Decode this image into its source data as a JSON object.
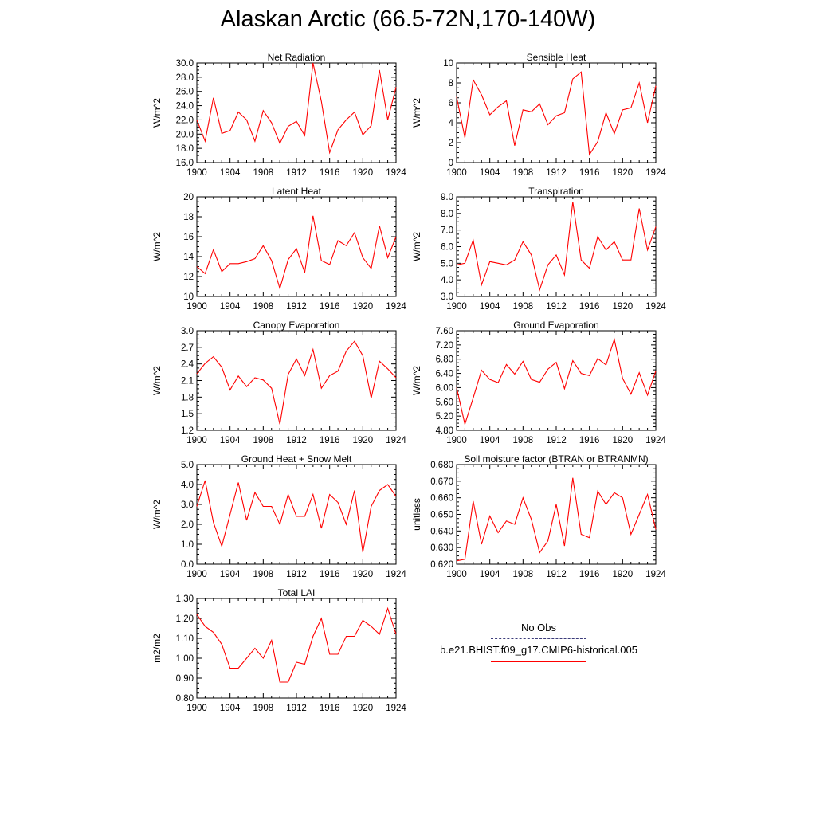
{
  "title": "Alaskan Arctic (66.5-72N,170-140W)",
  "legend": {
    "obs_label": "No Obs",
    "obs_color": "#3b3b7a",
    "model_label": "b.e21.BHIST.f09_g17.CMIP6-historical.005",
    "model_color": "#ff0000"
  },
  "chart_data": [
    {
      "type": "line",
      "title": "Net Radiation",
      "ylabel": "W/m^2",
      "xlim": [
        1900,
        1924
      ],
      "ylim": [
        16,
        30
      ],
      "yticks": [
        "16.0",
        "18.0",
        "20.0",
        "22.0",
        "24.0",
        "26.0",
        "28.0",
        "30.0"
      ],
      "xticks": [
        "1900",
        "1904",
        "1908",
        "1912",
        "1916",
        "1920",
        "1924"
      ],
      "x": [
        1900,
        1901,
        1902,
        1903,
        1904,
        1905,
        1906,
        1907,
        1908,
        1909,
        1910,
        1911,
        1912,
        1913,
        1914,
        1915,
        1916,
        1917,
        1918,
        1919,
        1920,
        1921,
        1922,
        1923,
        1924
      ],
      "series": [
        {
          "values": [
            22.0,
            19.0,
            25.1,
            20.1,
            20.5,
            23.1,
            22.0,
            19.0,
            23.3,
            21.6,
            18.7,
            21.1,
            21.8,
            19.8,
            30.0,
            24.6,
            17.4,
            20.6,
            22.0,
            23.1,
            19.9,
            21.2,
            29.0,
            22.0,
            26.6
          ]
        }
      ]
    },
    {
      "type": "line",
      "title": "Sensible Heat",
      "ylabel": "W/m^2",
      "xlim": [
        1900,
        1924
      ],
      "ylim": [
        0,
        10
      ],
      "yticks": [
        "0",
        "2",
        "4",
        "6",
        "8",
        "10"
      ],
      "xticks": [
        "1900",
        "1904",
        "1908",
        "1912",
        "1916",
        "1920",
        "1924"
      ],
      "x": [
        1900,
        1901,
        1902,
        1903,
        1904,
        1905,
        1906,
        1907,
        1908,
        1909,
        1910,
        1911,
        1912,
        1913,
        1914,
        1915,
        1916,
        1917,
        1918,
        1919,
        1920,
        1921,
        1922,
        1923,
        1924
      ],
      "series": [
        {
          "values": [
            6.6,
            2.5,
            8.3,
            6.8,
            4.8,
            5.6,
            6.2,
            1.7,
            5.3,
            5.1,
            5.9,
            3.8,
            4.7,
            5.0,
            8.4,
            9.1,
            0.8,
            2.1,
            5.0,
            2.9,
            5.3,
            5.5,
            8.0,
            4.0,
            7.7
          ]
        }
      ]
    },
    {
      "type": "line",
      "title": "Latent Heat",
      "ylabel": "W/m^2",
      "xlim": [
        1900,
        1924
      ],
      "ylim": [
        10,
        20
      ],
      "yticks": [
        "10",
        "12",
        "14",
        "16",
        "18",
        "20"
      ],
      "xticks": [
        "1900",
        "1904",
        "1908",
        "1912",
        "1916",
        "1920",
        "1924"
      ],
      "x": [
        1900,
        1901,
        1902,
        1903,
        1904,
        1905,
        1906,
        1907,
        1908,
        1909,
        1910,
        1911,
        1912,
        1913,
        1914,
        1915,
        1916,
        1917,
        1918,
        1919,
        1920,
        1921,
        1922,
        1923,
        1924
      ],
      "series": [
        {
          "values": [
            13.0,
            12.3,
            14.7,
            12.5,
            13.3,
            13.3,
            13.5,
            13.8,
            15.1,
            13.6,
            10.8,
            13.7,
            14.8,
            12.4,
            18.1,
            13.6,
            13.2,
            15.6,
            15.1,
            16.4,
            13.9,
            12.8,
            17.1,
            13.9,
            16.0
          ]
        }
      ]
    },
    {
      "type": "line",
      "title": "Transpiration",
      "ylabel": "W/m^2",
      "xlim": [
        1900,
        1924
      ],
      "ylim": [
        3,
        9
      ],
      "yticks": [
        "3.0",
        "4.0",
        "5.0",
        "6.0",
        "7.0",
        "8.0",
        "9.0"
      ],
      "xticks": [
        "1900",
        "1904",
        "1908",
        "1912",
        "1916",
        "1920",
        "1924"
      ],
      "x": [
        1900,
        1901,
        1902,
        1903,
        1904,
        1905,
        1906,
        1907,
        1908,
        1909,
        1910,
        1911,
        1912,
        1913,
        1914,
        1915,
        1916,
        1917,
        1918,
        1919,
        1920,
        1921,
        1922,
        1923,
        1924
      ],
      "series": [
        {
          "values": [
            4.9,
            5.0,
            6.4,
            3.7,
            5.1,
            5.0,
            4.9,
            5.2,
            6.3,
            5.5,
            3.4,
            4.9,
            5.5,
            4.3,
            8.7,
            5.2,
            4.7,
            6.6,
            5.8,
            6.3,
            5.2,
            5.2,
            8.3,
            5.8,
            7.2
          ]
        }
      ]
    },
    {
      "type": "line",
      "title": "Canopy Evaporation",
      "ylabel": "W/m^2",
      "xlim": [
        1900,
        1924
      ],
      "ylim": [
        1.2,
        3.0
      ],
      "yticks": [
        "1.2",
        "1.5",
        "1.8",
        "2.1",
        "2.4",
        "2.7",
        "3.0"
      ],
      "xticks": [
        "1900",
        "1904",
        "1908",
        "1912",
        "1916",
        "1920",
        "1924"
      ],
      "x": [
        1900,
        1901,
        1902,
        1903,
        1904,
        1905,
        1906,
        1907,
        1908,
        1909,
        1910,
        1911,
        1912,
        1913,
        1914,
        1915,
        1916,
        1917,
        1918,
        1919,
        1920,
        1921,
        1922,
        1923,
        1924
      ],
      "series": [
        {
          "values": [
            2.22,
            2.41,
            2.53,
            2.34,
            1.93,
            2.18,
            1.99,
            2.15,
            2.11,
            1.96,
            1.31,
            2.21,
            2.49,
            2.19,
            2.66,
            1.96,
            2.19,
            2.27,
            2.63,
            2.81,
            2.55,
            1.78,
            2.45,
            2.31,
            2.15
          ]
        }
      ]
    },
    {
      "type": "line",
      "title": "Ground Evaporation",
      "ylabel": "W/m^2",
      "xlim": [
        1900,
        1924
      ],
      "ylim": [
        4.8,
        7.6
      ],
      "yticks": [
        "4.80",
        "5.20",
        "5.60",
        "6.00",
        "6.40",
        "6.80",
        "7.20",
        "7.60"
      ],
      "xticks": [
        "1900",
        "1904",
        "1908",
        "1912",
        "1916",
        "1920",
        "1924"
      ],
      "x": [
        1900,
        1901,
        1902,
        1903,
        1904,
        1905,
        1906,
        1907,
        1908,
        1909,
        1910,
        1911,
        1912,
        1913,
        1914,
        1915,
        1916,
        1917,
        1918,
        1919,
        1920,
        1921,
        1922,
        1923,
        1924
      ],
      "series": [
        {
          "values": [
            6.0,
            4.97,
            5.71,
            6.49,
            6.23,
            6.14,
            6.65,
            6.38,
            6.74,
            6.23,
            6.15,
            6.52,
            6.71,
            5.97,
            6.76,
            6.4,
            6.34,
            6.82,
            6.64,
            7.36,
            6.26,
            5.82,
            6.42,
            5.79,
            6.47
          ]
        }
      ]
    },
    {
      "type": "line",
      "title": "Ground Heat + Snow Melt",
      "ylabel": "W/m^2",
      "xlim": [
        1900,
        1924
      ],
      "ylim": [
        0,
        5
      ],
      "yticks": [
        "0.0",
        "1.0",
        "2.0",
        "3.0",
        "4.0",
        "5.0"
      ],
      "xticks": [
        "1900",
        "1904",
        "1908",
        "1912",
        "1916",
        "1920",
        "1924"
      ],
      "x": [
        1900,
        1901,
        1902,
        1903,
        1904,
        1905,
        1906,
        1907,
        1908,
        1909,
        1910,
        1911,
        1912,
        1913,
        1914,
        1915,
        1916,
        1917,
        1918,
        1919,
        1920,
        1921,
        1922,
        1923,
        1924
      ],
      "series": [
        {
          "values": [
            2.9,
            4.2,
            2.1,
            0.9,
            2.5,
            4.1,
            2.2,
            3.6,
            2.9,
            2.9,
            2.0,
            3.5,
            2.4,
            2.4,
            3.5,
            1.8,
            3.5,
            3.1,
            2.0,
            3.7,
            0.6,
            2.9,
            3.7,
            4.0,
            3.4
          ]
        }
      ]
    },
    {
      "type": "line",
      "title": "Soil moisture factor (BTRAN or BTRANMN)",
      "ylabel": "unitless",
      "xlim": [
        1900,
        1924
      ],
      "ylim": [
        0.62,
        0.68
      ],
      "yticks": [
        "0.620",
        "0.630",
        "0.640",
        "0.650",
        "0.660",
        "0.670",
        "0.680"
      ],
      "xticks": [
        "1900",
        "1904",
        "1908",
        "1912",
        "1916",
        "1920",
        "1924"
      ],
      "x": [
        1900,
        1901,
        1902,
        1903,
        1904,
        1905,
        1906,
        1907,
        1908,
        1909,
        1910,
        1911,
        1912,
        1913,
        1914,
        1915,
        1916,
        1917,
        1918,
        1919,
        1920,
        1921,
        1922,
        1923,
        1924
      ],
      "series": [
        {
          "values": [
            0.622,
            0.623,
            0.658,
            0.632,
            0.649,
            0.639,
            0.646,
            0.644,
            0.66,
            0.647,
            0.627,
            0.634,
            0.656,
            0.631,
            0.672,
            0.638,
            0.636,
            0.664,
            0.656,
            0.663,
            0.66,
            0.638,
            0.65,
            0.662,
            0.641
          ]
        }
      ]
    },
    {
      "type": "line",
      "title": "Total LAI",
      "ylabel": "m2/m2",
      "xlim": [
        1900,
        1924
      ],
      "ylim": [
        0.8,
        1.3
      ],
      "yticks": [
        "0.80",
        "0.90",
        "1.00",
        "1.10",
        "1.20",
        "1.30"
      ],
      "xticks": [
        "1900",
        "1904",
        "1908",
        "1912",
        "1916",
        "1920",
        "1924"
      ],
      "x": [
        1900,
        1901,
        1902,
        1903,
        1904,
        1905,
        1906,
        1907,
        1908,
        1909,
        1910,
        1911,
        1912,
        1913,
        1914,
        1915,
        1916,
        1917,
        1918,
        1919,
        1920,
        1921,
        1922,
        1923,
        1924
      ],
      "series": [
        {
          "values": [
            1.22,
            1.16,
            1.13,
            1.07,
            0.95,
            0.95,
            1.0,
            1.05,
            1.0,
            1.09,
            0.88,
            0.88,
            0.98,
            0.97,
            1.11,
            1.2,
            1.02,
            1.02,
            1.11,
            1.11,
            1.19,
            1.16,
            1.12,
            1.25,
            1.12
          ]
        }
      ]
    }
  ]
}
